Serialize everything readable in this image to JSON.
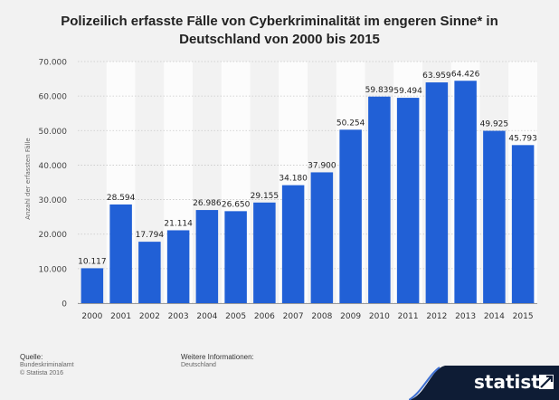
{
  "title_line1": "Polizeilich erfasste Fälle von Cyberkriminalität im engeren Sinne* in",
  "title_line2": "Deutschland von 2000 bis 2015",
  "footer": {
    "source_label": "Quelle:",
    "source_name": "Bundeskriminalamt",
    "copyright": "© Statista 2016",
    "info_label": "Weitere Informationen:",
    "info_value": "Deutschland"
  },
  "brand": "statista",
  "colors": {
    "bar": "#2160d6",
    "band": "#fcfcfc",
    "background": "#f2f2f2",
    "brand_dark": "#0e1c35"
  },
  "chart_data": {
    "type": "bar",
    "title": "Polizeilich erfasste Fälle von Cyberkriminalität im engeren Sinne* in Deutschland von 2000 bis 2015",
    "ylabel": "Anzahl der erfassten Fälle",
    "xlabel": "",
    "categories": [
      "2000",
      "2001",
      "2002",
      "2003",
      "2004",
      "2005",
      "2006",
      "2007",
      "2008",
      "2009",
      "2010",
      "2011",
      "2012",
      "2013",
      "2014",
      "2015"
    ],
    "values": [
      10117,
      28594,
      17794,
      21114,
      26986,
      26650,
      29155,
      34180,
      37900,
      50254,
      59839,
      59494,
      63959,
      64426,
      49925,
      45793
    ],
    "value_labels": [
      "10.117",
      "28.594",
      "17.794",
      "21.114",
      "26.986",
      "26.650",
      "29.155",
      "34.180",
      "37.900",
      "50.254",
      "59.839",
      "59.494",
      "63.959",
      "64.426",
      "49.925",
      "45.793"
    ],
    "ylim": [
      0,
      70000
    ],
    "yticks": [
      0,
      10000,
      20000,
      30000,
      40000,
      50000,
      60000,
      70000
    ],
    "ytick_labels": [
      "0",
      "10.000",
      "20.000",
      "30.000",
      "40.000",
      "50.000",
      "60.000",
      "70.000"
    ],
    "grid": true,
    "legend": "none"
  }
}
